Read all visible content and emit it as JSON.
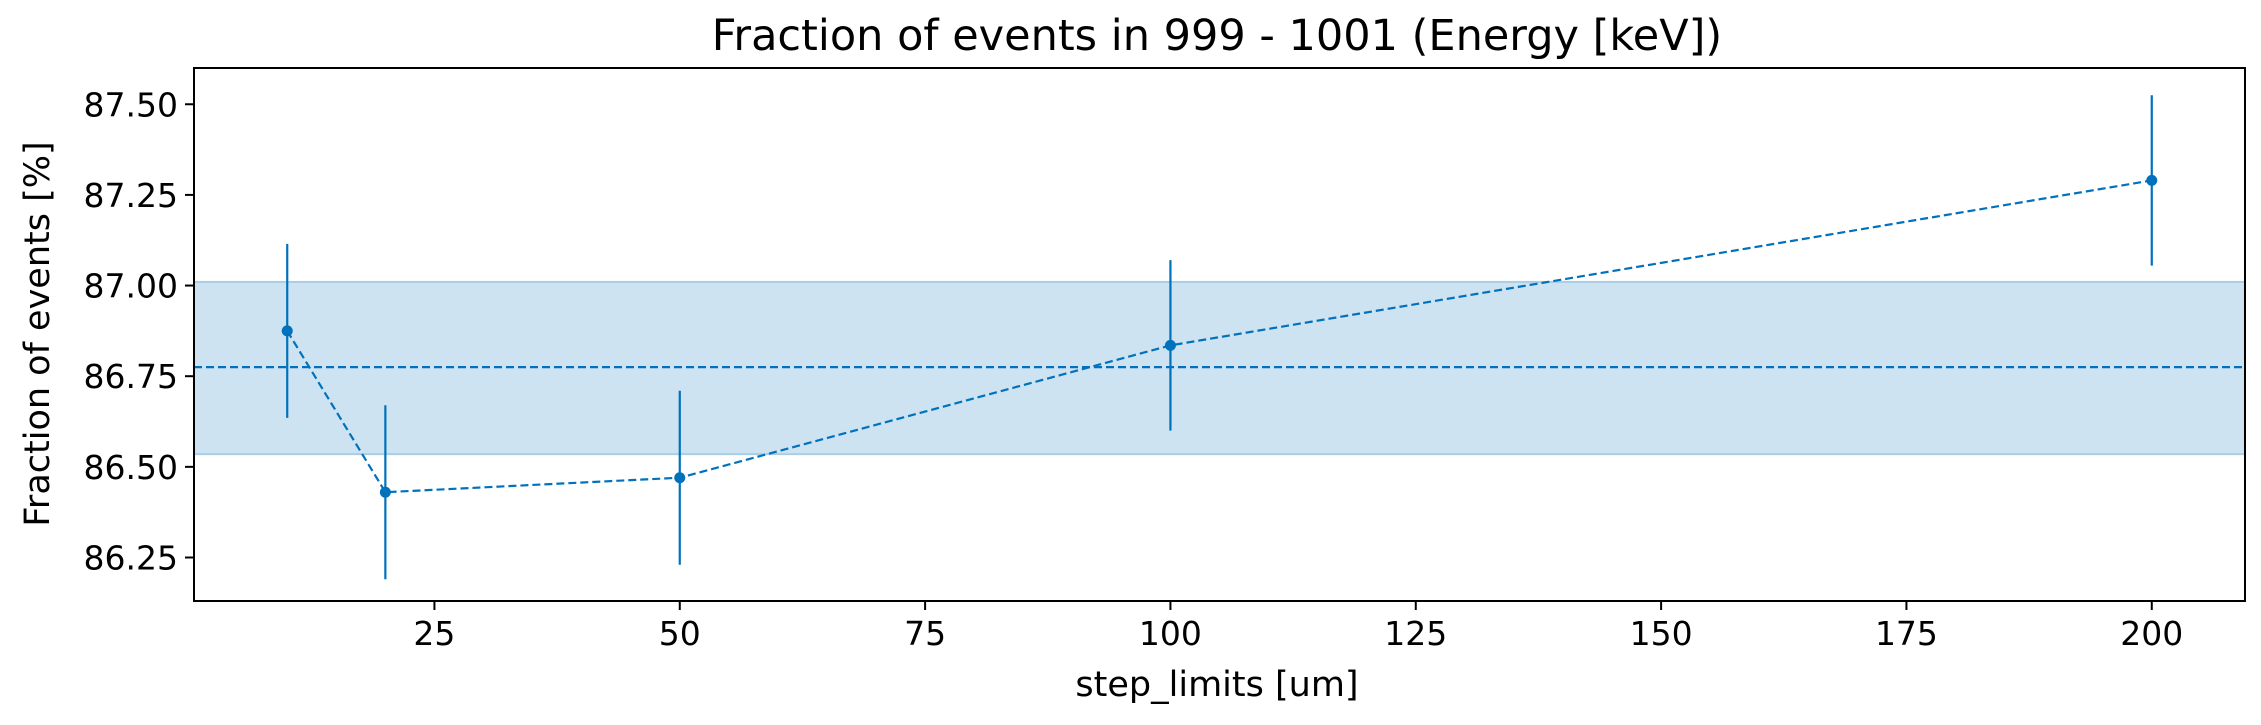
{
  "chart_data": {
    "type": "line",
    "title": "Fraction of events in 999 - 1001 (Energy [keV])",
    "xlabel": "step_limits [um]",
    "ylabel": "Fraction of events [%]",
    "xlim": [
      0.5,
      209.5
    ],
    "ylim": [
      86.13,
      87.6
    ],
    "grid": false,
    "xticks": [
      25,
      50,
      75,
      100,
      125,
      150,
      175,
      200
    ],
    "xtick_labels": [
      "25",
      "50",
      "75",
      "100",
      "125",
      "150",
      "175",
      "200"
    ],
    "yticks": [
      86.25,
      86.5,
      86.75,
      87.0,
      87.25,
      87.5
    ],
    "ytick_labels": [
      "86.25",
      "86.50",
      "86.75",
      "87.00",
      "87.25",
      "87.50"
    ],
    "series": [
      {
        "x": [
          10,
          20,
          50,
          100,
          200
        ],
        "y": [
          86.875,
          86.43,
          86.47,
          86.835,
          87.29
        ],
        "yerr": [
          0.24,
          0.24,
          0.24,
          0.235,
          0.235
        ],
        "color": "#0072bd",
        "linestyle": "dashed",
        "marker": "circle"
      }
    ],
    "reference": {
      "mean": 86.775,
      "band": [
        86.535,
        87.01
      ],
      "color": "#0072bd",
      "band_color": "#cde3f1"
    }
  }
}
